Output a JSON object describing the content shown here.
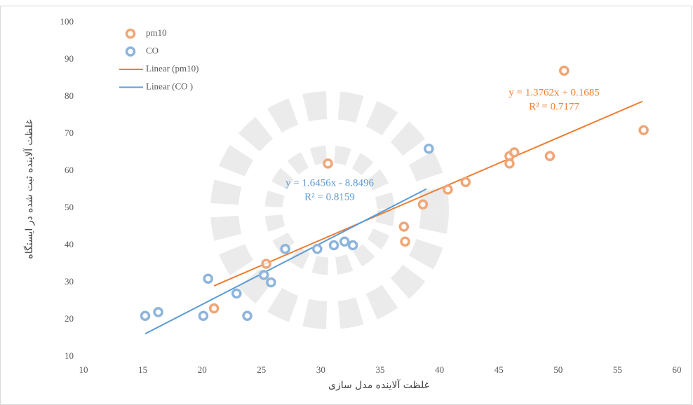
{
  "chart_data": {
    "type": "scatter",
    "xlabel": "غلظت آلاینده مدل سازی",
    "ylabel": "غلظت آلاینده ثبت شده در ایستگاه",
    "xlim": [
      10,
      60
    ],
    "ylim": [
      10,
      100
    ],
    "xticks": [
      10,
      15,
      20,
      25,
      30,
      35,
      40,
      45,
      50,
      55,
      60
    ],
    "yticks": [
      10,
      20,
      30,
      40,
      50,
      60,
      70,
      80,
      90,
      100
    ],
    "grid": false,
    "legend": "top-left",
    "series": [
      {
        "name": "pm10",
        "color": "#f0a677",
        "x": [
          21.0,
          25.4,
          30.6,
          37.0,
          37.1,
          38.6,
          40.7,
          42.2,
          45.9,
          45.9,
          46.3,
          49.3,
          50.5,
          57.2
        ],
        "values": [
          23,
          35,
          62,
          45,
          41,
          51,
          55,
          57,
          64,
          62,
          65,
          64,
          87,
          71
        ]
      },
      {
        "name": "CO",
        "color": "#8db4dc",
        "x": [
          15.2,
          16.3,
          20.1,
          20.5,
          22.9,
          23.8,
          25.2,
          25.8,
          27.0,
          29.7,
          31.1,
          32.0,
          32.7,
          39.1
        ],
        "values": [
          21,
          22,
          21,
          31,
          27,
          21,
          32,
          30,
          39,
          39,
          40,
          41,
          40,
          66
        ]
      }
    ],
    "trendlines": [
      {
        "name": "Linear (pm10)",
        "color": "#ed7d31",
        "x": [
          21.0,
          57.1
        ],
        "values": [
          29.07,
          78.75
        ],
        "equation": "y = 1.3762x + 0.1685",
        "r2": "R² = 0.7177"
      },
      {
        "name": "Linear (CO )",
        "color": "#5b9bd5",
        "x": [
          15.2,
          38.9
        ],
        "values": [
          16.16,
          55.17
        ],
        "equation": "y = 1.6456x - 8.8496",
        "r2": "R² = 0.8159"
      }
    ]
  }
}
